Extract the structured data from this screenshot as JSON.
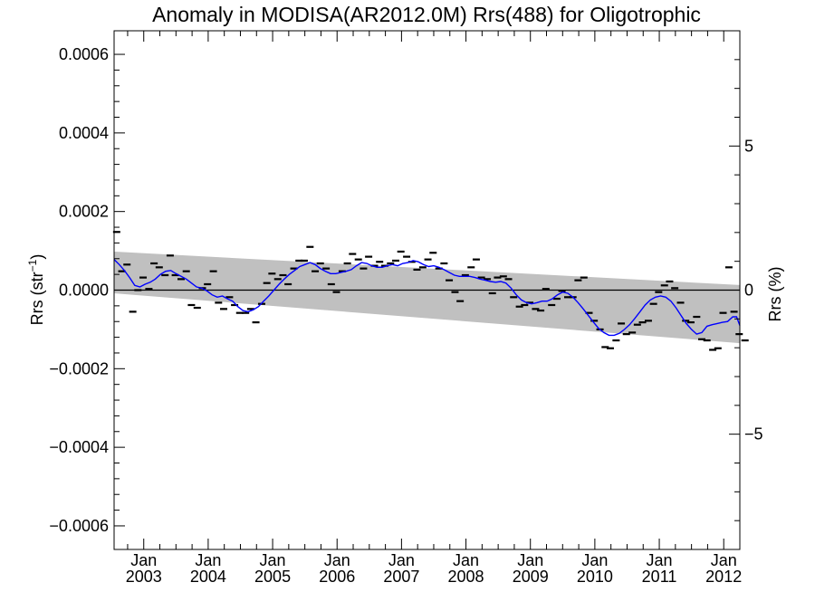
{
  "chart_data": {
    "type": "scatter",
    "title": "Anomaly in MODISA(AR2012.0M) Rrs(488) for Oligotrophic",
    "ylabel": "Rrs (str",
    "ylabel_sup": "−1",
    "ylabel_close": ")",
    "y2label": "Rrs (%)",
    "xlim": [
      2002.54,
      2012.25
    ],
    "ylim": [
      -0.00066,
      0.00066
    ],
    "y2lim": [
      -9.0,
      9.0
    ],
    "yticks": [
      {
        "value": 0.0006,
        "label": "0.0006"
      },
      {
        "value": 0.0004,
        "label": "0.0004"
      },
      {
        "value": 0.0002,
        "label": "0.0002"
      },
      {
        "value": 0.0,
        "label": "0.0000"
      },
      {
        "value": -0.0002,
        "label": "−0.0002"
      },
      {
        "value": -0.0004,
        "label": "−0.0004"
      },
      {
        "value": -0.0006,
        "label": "−0.0006"
      }
    ],
    "y2ticks": [
      {
        "value": 5,
        "label": "5"
      },
      {
        "value": 0,
        "label": "0"
      },
      {
        "value": -5,
        "label": "−5"
      }
    ],
    "xticks": [
      {
        "value": 2003.0,
        "month": "Jan",
        "year": "2003"
      },
      {
        "value": 2004.0,
        "month": "Jan",
        "year": "2004"
      },
      {
        "value": 2005.0,
        "month": "Jan",
        "year": "2005"
      },
      {
        "value": 2006.0,
        "month": "Jan",
        "year": "2006"
      },
      {
        "value": 2007.0,
        "month": "Jan",
        "year": "2007"
      },
      {
        "value": 2008.0,
        "month": "Jan",
        "year": "2008"
      },
      {
        "value": 2009.0,
        "month": "Jan",
        "year": "2009"
      },
      {
        "value": 2010.0,
        "month": "Jan",
        "year": "2010"
      },
      {
        "value": 2011.0,
        "month": "Jan",
        "year": "2011"
      },
      {
        "value": 2012.0,
        "month": "Jan",
        "year": "2012"
      }
    ],
    "zero_line": true,
    "band": {
      "color": "#c0c0c0",
      "upper": [
        [
          2002.54,
          9.8e-05
        ],
        [
          2012.25,
          1.3e-05
        ]
      ],
      "lower": [
        [
          2002.54,
          -8e-06
        ],
        [
          2012.25,
          -0.000135
        ]
      ]
    },
    "series": [
      {
        "type": "marker",
        "color": "#000000",
        "points": [
          [
            2002.58,
            0.000148
          ],
          [
            2002.66,
            4.8e-05
          ],
          [
            2002.74,
            6.5e-05
          ],
          [
            2002.83,
            -5.5e-05
          ],
          [
            2002.91,
            0.0
          ],
          [
            2002.99,
            3.2e-05
          ],
          [
            2003.08,
            3e-06
          ],
          [
            2003.16,
            6.8e-05
          ],
          [
            2003.24,
            5.8e-05
          ],
          [
            2003.33,
            3.8e-05
          ],
          [
            2003.41,
            8.8e-05
          ],
          [
            2003.49,
            3.8e-05
          ],
          [
            2003.58,
            2.8e-05
          ],
          [
            2003.66,
            4.8e-05
          ],
          [
            2003.74,
            -3.8e-05
          ],
          [
            2003.83,
            -4.5e-05
          ],
          [
            2003.91,
            5e-06
          ],
          [
            2003.99,
            1.5e-05
          ],
          [
            2004.08,
            4.8e-05
          ],
          [
            2004.16,
            -3.2e-05
          ],
          [
            2004.24,
            -4.8e-05
          ],
          [
            2004.33,
            -1.8e-05
          ],
          [
            2004.41,
            -3.8e-05
          ],
          [
            2004.49,
            -5.8e-05
          ],
          [
            2004.58,
            -5.8e-05
          ],
          [
            2004.66,
            -4.8e-05
          ],
          [
            2004.74,
            -8.2e-05
          ],
          [
            2004.83,
            -3.5e-05
          ],
          [
            2004.91,
            1.8e-05
          ],
          [
            2004.99,
            4.2e-05
          ],
          [
            2005.08,
            2.8e-05
          ],
          [
            2005.16,
            3.8e-05
          ],
          [
            2005.24,
            1.5e-05
          ],
          [
            2005.33,
            5.5e-05
          ],
          [
            2005.41,
            7.5e-05
          ],
          [
            2005.49,
            7.5e-05
          ],
          [
            2005.58,
            0.00011
          ],
          [
            2005.66,
            4.8e-05
          ],
          [
            2005.74,
            6.8e-05
          ],
          [
            2005.83,
            5.5e-05
          ],
          [
            2005.91,
            1.5e-05
          ],
          [
            2005.99,
            -5e-06
          ],
          [
            2006.08,
            4.8e-05
          ],
          [
            2006.16,
            6.8e-05
          ],
          [
            2006.24,
            9.2e-05
          ],
          [
            2006.33,
            7.8e-05
          ],
          [
            2006.41,
            5.5e-05
          ],
          [
            2006.49,
            8.5e-05
          ],
          [
            2006.58,
            6.2e-05
          ],
          [
            2006.66,
            7.2e-05
          ],
          [
            2006.74,
            6.2e-05
          ],
          [
            2006.83,
            6.8e-05
          ],
          [
            2006.91,
            7.5e-05
          ],
          [
            2006.99,
            9.8e-05
          ],
          [
            2007.08,
            8.5e-05
          ],
          [
            2007.16,
            7.2e-05
          ],
          [
            2007.24,
            5.2e-05
          ],
          [
            2007.33,
            5.8e-05
          ],
          [
            2007.41,
            7.8e-05
          ],
          [
            2007.49,
            9.5e-05
          ],
          [
            2007.58,
            5.5e-05
          ],
          [
            2007.66,
            6.8e-05
          ],
          [
            2007.74,
            2.5e-05
          ],
          [
            2007.83,
            -5e-06
          ],
          [
            2007.91,
            -2.8e-05
          ],
          [
            2007.99,
            3.8e-05
          ],
          [
            2008.08,
            5.8e-05
          ],
          [
            2008.16,
            7.8e-05
          ],
          [
            2008.24,
            3.2e-05
          ],
          [
            2008.33,
            2.8e-05
          ],
          [
            2008.41,
            -8e-06
          ],
          [
            2008.49,
            3.2e-05
          ],
          [
            2008.58,
            3.5e-05
          ],
          [
            2008.66,
            2.8e-05
          ],
          [
            2008.74,
            -1.8e-05
          ],
          [
            2008.83,
            -4.2e-05
          ],
          [
            2008.91,
            -3.8e-05
          ],
          [
            2008.99,
            -3.2e-05
          ],
          [
            2009.08,
            -4.8e-05
          ],
          [
            2009.16,
            -5.2e-05
          ],
          [
            2009.24,
            3e-06
          ],
          [
            2009.33,
            -3.8e-05
          ],
          [
            2009.41,
            -2.2e-05
          ],
          [
            2009.49,
            -2e-06
          ],
          [
            2009.58,
            -1.8e-05
          ],
          [
            2009.66,
            -1.8e-05
          ],
          [
            2009.74,
            2.5e-05
          ],
          [
            2009.83,
            3.2e-05
          ],
          [
            2009.91,
            -5.8e-05
          ],
          [
            2009.99,
            -7.8e-05
          ],
          [
            2010.08,
            -0.0001
          ],
          [
            2010.16,
            -0.000145
          ],
          [
            2010.24,
            -0.000148
          ],
          [
            2010.33,
            -0.000128
          ],
          [
            2010.41,
            -8.5e-05
          ],
          [
            2010.49,
            -0.000112
          ],
          [
            2010.58,
            -0.000108
          ],
          [
            2010.66,
            -8.8e-05
          ],
          [
            2010.74,
            -8.2e-05
          ],
          [
            2010.83,
            -7.8e-05
          ],
          [
            2010.91,
            -3.5e-05
          ],
          [
            2010.99,
            -5e-06
          ],
          [
            2011.08,
            1.2e-05
          ],
          [
            2011.16,
            2.2e-05
          ],
          [
            2011.24,
            5e-06
          ],
          [
            2011.33,
            -3.2e-05
          ],
          [
            2011.41,
            -7.8e-05
          ],
          [
            2011.49,
            -8.2e-05
          ],
          [
            2011.58,
            -6.8e-05
          ],
          [
            2011.66,
            -0.000125
          ],
          [
            2011.74,
            -0.000128
          ],
          [
            2011.83,
            -0.000152
          ],
          [
            2011.91,
            -0.000148
          ],
          [
            2011.99,
            -5.8e-05
          ],
          [
            2012.08,
            5.8e-05
          ],
          [
            2012.16,
            -5.5e-05
          ],
          [
            2012.24,
            -0.000112
          ],
          [
            2012.33,
            -0.000128
          ]
        ]
      },
      {
        "type": "line",
        "color": "#0000ff",
        "points": [
          [
            2002.54,
            7.8e-05
          ],
          [
            2002.62,
            6.5e-05
          ],
          [
            2002.7,
            5e-05
          ],
          [
            2002.78,
            3.2e-05
          ],
          [
            2002.86,
            1.2e-05
          ],
          [
            2002.94,
            8e-06
          ],
          [
            2003.02,
            1.5e-05
          ],
          [
            2003.1,
            2e-05
          ],
          [
            2003.18,
            2.8e-05
          ],
          [
            2003.26,
            4e-05
          ],
          [
            2003.34,
            4.8e-05
          ],
          [
            2003.42,
            5e-05
          ],
          [
            2003.5,
            4.2e-05
          ],
          [
            2003.58,
            3.5e-05
          ],
          [
            2003.66,
            2.8e-05
          ],
          [
            2003.74,
            1.8e-05
          ],
          [
            2003.82,
            8e-06
          ],
          [
            2003.9,
            5e-06
          ],
          [
            2003.98,
            -2e-06
          ],
          [
            2004.06,
            -1.2e-05
          ],
          [
            2004.14,
            -1.8e-05
          ],
          [
            2004.22,
            -1.5e-05
          ],
          [
            2004.3,
            -2.2e-05
          ],
          [
            2004.38,
            -2.8e-05
          ],
          [
            2004.46,
            -4.2e-05
          ],
          [
            2004.54,
            -5.2e-05
          ],
          [
            2004.62,
            -5.5e-05
          ],
          [
            2004.7,
            -5e-05
          ],
          [
            2004.78,
            -4.2e-05
          ],
          [
            2004.86,
            -2.8e-05
          ],
          [
            2004.94,
            -1.5e-05
          ],
          [
            2005.02,
            0.0
          ],
          [
            2005.1,
            1.5e-05
          ],
          [
            2005.18,
            2.8e-05
          ],
          [
            2005.26,
            4e-05
          ],
          [
            2005.34,
            5e-05
          ],
          [
            2005.42,
            6e-05
          ],
          [
            2005.5,
            6.5e-05
          ],
          [
            2005.58,
            7e-05
          ],
          [
            2005.66,
            6.5e-05
          ],
          [
            2005.74,
            5.5e-05
          ],
          [
            2005.82,
            4.8e-05
          ],
          [
            2005.9,
            4.2e-05
          ],
          [
            2005.98,
            4.2e-05
          ],
          [
            2006.06,
            4.5e-05
          ],
          [
            2006.14,
            4.8e-05
          ],
          [
            2006.22,
            5.2e-05
          ],
          [
            2006.3,
            6.2e-05
          ],
          [
            2006.38,
            7e-05
          ],
          [
            2006.46,
            6.8e-05
          ],
          [
            2006.54,
            6.2e-05
          ],
          [
            2006.62,
            5.8e-05
          ],
          [
            2006.7,
            5.8e-05
          ],
          [
            2006.78,
            6.2e-05
          ],
          [
            2006.86,
            6.5e-05
          ],
          [
            2006.94,
            6.2e-05
          ],
          [
            2007.02,
            6.8e-05
          ],
          [
            2007.1,
            7e-05
          ],
          [
            2007.18,
            7.5e-05
          ],
          [
            2007.26,
            7.2e-05
          ],
          [
            2007.34,
            6.5e-05
          ],
          [
            2007.42,
            6e-05
          ],
          [
            2007.5,
            6.2e-05
          ],
          [
            2007.58,
            5.8e-05
          ],
          [
            2007.66,
            5.2e-05
          ],
          [
            2007.74,
            4.5e-05
          ],
          [
            2007.82,
            3.8e-05
          ],
          [
            2007.9,
            3.5e-05
          ],
          [
            2007.98,
            3.5e-05
          ],
          [
            2008.06,
            3.5e-05
          ],
          [
            2008.14,
            3.2e-05
          ],
          [
            2008.22,
            2.8e-05
          ],
          [
            2008.3,
            2.5e-05
          ],
          [
            2008.38,
            2.2e-05
          ],
          [
            2008.46,
            2e-05
          ],
          [
            2008.54,
            2.2e-05
          ],
          [
            2008.62,
            1.8e-05
          ],
          [
            2008.7,
            5e-06
          ],
          [
            2008.78,
            -1.2e-05
          ],
          [
            2008.86,
            -2.5e-05
          ],
          [
            2008.94,
            -3.2e-05
          ],
          [
            2009.02,
            -3.5e-05
          ],
          [
            2009.1,
            -3.2e-05
          ],
          [
            2009.18,
            -2.8e-05
          ],
          [
            2009.26,
            -2.8e-05
          ],
          [
            2009.34,
            -2.2e-05
          ],
          [
            2009.42,
            -1.2e-05
          ],
          [
            2009.5,
            -5e-06
          ],
          [
            2009.58,
            -8e-06
          ],
          [
            2009.66,
            -1.8e-05
          ],
          [
            2009.74,
            -3.2e-05
          ],
          [
            2009.82,
            -4.8e-05
          ],
          [
            2009.9,
            -6.5e-05
          ],
          [
            2009.98,
            -8.2e-05
          ],
          [
            2010.06,
            -9.8e-05
          ],
          [
            2010.14,
            -0.000108
          ],
          [
            2010.22,
            -0.000115
          ],
          [
            2010.3,
            -0.000115
          ],
          [
            2010.38,
            -0.00011
          ],
          [
            2010.46,
            -0.0001
          ],
          [
            2010.54,
            -8.8e-05
          ],
          [
            2010.62,
            -7.2e-05
          ],
          [
            2010.7,
            -5.5e-05
          ],
          [
            2010.78,
            -3.8e-05
          ],
          [
            2010.86,
            -2.5e-05
          ],
          [
            2010.94,
            -1.8e-05
          ],
          [
            2011.02,
            -1.5e-05
          ],
          [
            2011.1,
            -1.8e-05
          ],
          [
            2011.18,
            -2.8e-05
          ],
          [
            2011.26,
            -4.5e-05
          ],
          [
            2011.34,
            -6.5e-05
          ],
          [
            2011.42,
            -8.5e-05
          ],
          [
            2011.5,
            -0.0001
          ],
          [
            2011.58,
            -0.000112
          ],
          [
            2011.66,
            -0.000108
          ],
          [
            2011.74,
            -9.2e-05
          ],
          [
            2011.82,
            -8.8e-05
          ],
          [
            2011.9,
            -8.5e-05
          ],
          [
            2011.98,
            -8.2e-05
          ],
          [
            2012.06,
            -8e-05
          ],
          [
            2012.14,
            -6.8e-05
          ],
          [
            2012.2,
            -6.8e-05
          ],
          [
            2012.25,
            -9e-05
          ]
        ]
      }
    ]
  }
}
